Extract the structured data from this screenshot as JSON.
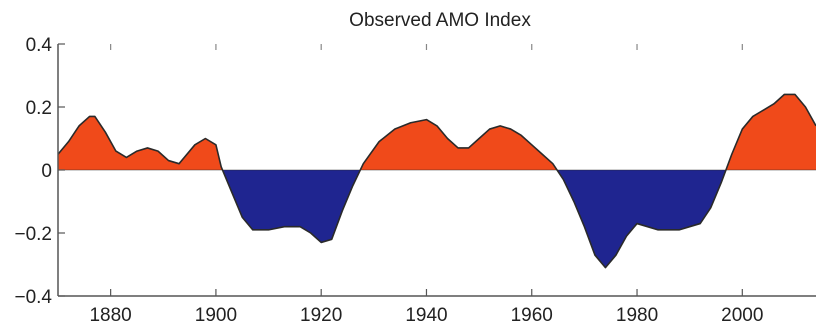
{
  "chart_data": {
    "type": "area",
    "title": "Observed AMO Index",
    "xlabel": "",
    "ylabel": "",
    "xlim": [
      1870,
      2014
    ],
    "ylim": [
      -0.4,
      0.4
    ],
    "grid": false,
    "baseline": 0,
    "colors": {
      "positive": "#f04a1a",
      "negative": "#1f2590",
      "line": "#2a2a2a",
      "axis": "#555555"
    },
    "x_ticks": [
      1880,
      1900,
      1920,
      1940,
      1960,
      1980,
      2000
    ],
    "x_tick_labels": [
      "1880",
      "1900",
      "1920",
      "1940",
      "1960",
      "1980",
      "2000"
    ],
    "y_ticks": [
      0.4,
      0.2,
      0,
      -0.2,
      -0.4
    ],
    "y_tick_labels": [
      "0.4",
      "0.2",
      "0",
      "−0.2",
      "−0.4"
    ],
    "series": [
      {
        "x": [
          1870,
          1872,
          1874,
          1876,
          1877,
          1879,
          1881,
          1883,
          1885,
          1887,
          1889,
          1891,
          1893,
          1894,
          1896,
          1898,
          1900,
          1901,
          1903,
          1905,
          1907,
          1910,
          1913,
          1916,
          1918,
          1920,
          1922,
          1924,
          1926,
          1928,
          1931,
          1934,
          1937,
          1940,
          1942,
          1944,
          1946,
          1948,
          1950,
          1952,
          1954,
          1956,
          1958,
          1960,
          1962,
          1964,
          1966,
          1968,
          1970,
          1972,
          1974,
          1976,
          1978,
          1980,
          1982,
          1984,
          1986,
          1988,
          1990,
          1992,
          1994,
          1996,
          1998,
          2000,
          2002,
          2004,
          2006,
          2008,
          2010,
          2012,
          2014
        ],
        "y": [
          0.05,
          0.09,
          0.14,
          0.17,
          0.17,
          0.12,
          0.06,
          0.04,
          0.06,
          0.07,
          0.06,
          0.03,
          0.02,
          0.04,
          0.08,
          0.1,
          0.08,
          0.01,
          -0.07,
          -0.15,
          -0.19,
          -0.19,
          -0.18,
          -0.18,
          -0.2,
          -0.23,
          -0.22,
          -0.13,
          -0.05,
          0.02,
          0.09,
          0.13,
          0.15,
          0.16,
          0.14,
          0.1,
          0.07,
          0.07,
          0.1,
          0.13,
          0.14,
          0.13,
          0.11,
          0.08,
          0.05,
          0.02,
          -0.03,
          -0.1,
          -0.18,
          -0.27,
          -0.31,
          -0.27,
          -0.21,
          -0.17,
          -0.18,
          -0.19,
          -0.19,
          -0.19,
          -0.18,
          -0.17,
          -0.12,
          -0.04,
          0.05,
          0.13,
          0.17,
          0.19,
          0.21,
          0.24,
          0.24,
          0.2,
          0.14
        ]
      }
    ]
  }
}
